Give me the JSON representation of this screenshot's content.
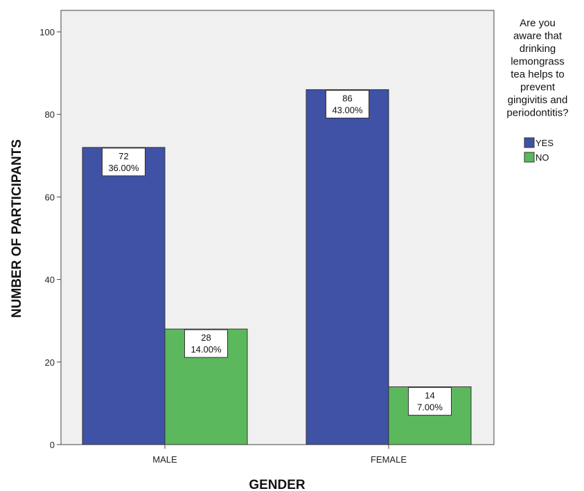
{
  "chart_data": {
    "type": "bar",
    "categories": [
      "MALE",
      "FEMALE"
    ],
    "series": [
      {
        "name": "YES",
        "values": [
          72,
          86
        ],
        "labels": [
          "36.00%",
          "43.00%"
        ],
        "color": "#3f52a5"
      },
      {
        "name": "NO",
        "values": [
          28,
          14
        ],
        "labels": [
          "14.00%",
          "7.00%"
        ],
        "color": "#5cb85c"
      }
    ],
    "xlabel": "GENDER",
    "ylabel": "NUMBER OF PARTICIPANTS",
    "ylim": [
      0,
      105
    ],
    "yticks": [
      0,
      20,
      40,
      60,
      80,
      100
    ],
    "legend_title": [
      "Are you",
      "aware that",
      "drinking",
      "lemongrass",
      "tea helps to",
      "prevent",
      "gingivitis and",
      "periodontitis?"
    ],
    "legend_position": "right",
    "plot_background": "#f0f0f0",
    "grid": false
  }
}
